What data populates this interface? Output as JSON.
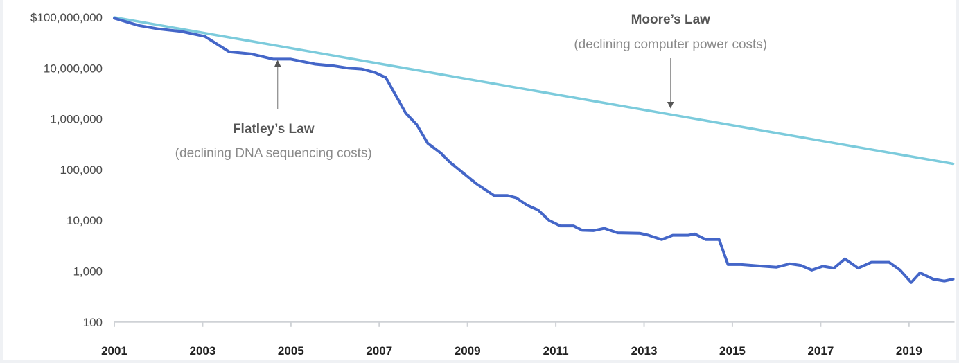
{
  "chart_data": {
    "type": "line",
    "title": "",
    "xlabel": "",
    "ylabel": "",
    "y_scale": "log",
    "ylim": [
      100,
      100000000
    ],
    "xlim": [
      2001,
      2020
    ],
    "grid": false,
    "y_ticks": [
      {
        "value": 100000000,
        "label": "$100,000,000"
      },
      {
        "value": 10000000,
        "label": "10,000,000"
      },
      {
        "value": 1000000,
        "label": "1,000,000"
      },
      {
        "value": 100000,
        "label": "100,000"
      },
      {
        "value": 10000,
        "label": "10,000"
      },
      {
        "value": 1000,
        "label": "1,000"
      },
      {
        "value": 100,
        "label": "100"
      }
    ],
    "x_ticks": [
      {
        "value": 2001,
        "label": "2001"
      },
      {
        "value": 2003,
        "label": "2003"
      },
      {
        "value": 2005,
        "label": "2005"
      },
      {
        "value": 2007,
        "label": "2007"
      },
      {
        "value": 2009,
        "label": "2009"
      },
      {
        "value": 2011,
        "label": "2011"
      },
      {
        "value": 2013,
        "label": "2013"
      },
      {
        "value": 2015,
        "label": "2015"
      },
      {
        "value": 2017,
        "label": "2017"
      },
      {
        "value": 2019,
        "label": "2019"
      }
    ],
    "series": [
      {
        "name": "Moore's Law",
        "color": "#7ccbdc",
        "x": [
          2001,
          2020
        ],
        "values": [
          100000000,
          130000
        ]
      },
      {
        "name": "Flatley's Law",
        "color": "#4466c8",
        "x": [
          2001.0,
          2001.55,
          2002.0,
          2002.5,
          2003.05,
          2003.6,
          2004.1,
          2004.6,
          2005.0,
          2005.55,
          2006.0,
          2006.3,
          2006.6,
          2006.9,
          2007.15,
          2007.6,
          2007.85,
          2008.1,
          2008.4,
          2008.6,
          2009.2,
          2009.6,
          2009.9,
          2010.1,
          2010.35,
          2010.6,
          2010.85,
          2011.1,
          2011.4,
          2011.6,
          2011.85,
          2012.1,
          2012.4,
          2012.9,
          2013.1,
          2013.4,
          2013.65,
          2014.0,
          2014.15,
          2014.4,
          2014.7,
          2014.9,
          2015.2,
          2015.7,
          2016.0,
          2016.3,
          2016.55,
          2016.8,
          2017.05,
          2017.3,
          2017.55,
          2017.85,
          2018.15,
          2018.55,
          2018.8,
          2019.05,
          2019.25,
          2019.55,
          2019.8,
          2020.0
        ],
        "values": [
          96000000,
          69000000,
          59000000,
          53000000,
          42000000,
          21000000,
          19000000,
          15000000,
          15000000,
          12000000,
          11000000,
          10000000,
          9600000,
          8200000,
          6500000,
          1300000,
          770000,
          330000,
          210000,
          140000,
          53000,
          31000,
          31000,
          28000,
          20000,
          16000,
          10000,
          7800,
          7800,
          6400,
          6300,
          7000,
          5700,
          5600,
          5100,
          4200,
          5100,
          5100,
          5400,
          4200,
          4200,
          1350,
          1350,
          1250,
          1200,
          1400,
          1300,
          1050,
          1250,
          1150,
          1750,
          1150,
          1500,
          1500,
          1050,
          600,
          930,
          700,
          640,
          700
        ]
      }
    ],
    "annotations": [
      {
        "title": "Moore’s Law",
        "subtitle": "(declining computer power costs)",
        "arrow_at": {
          "x": 2013.6,
          "value": 1450000
        },
        "direction": "down"
      },
      {
        "title": "Flatley’s Law",
        "subtitle": "(declining DNA sequencing costs)",
        "arrow_at": {
          "x": 2004.7,
          "value": 17000000
        },
        "direction": "up"
      }
    ],
    "legend": "none"
  }
}
